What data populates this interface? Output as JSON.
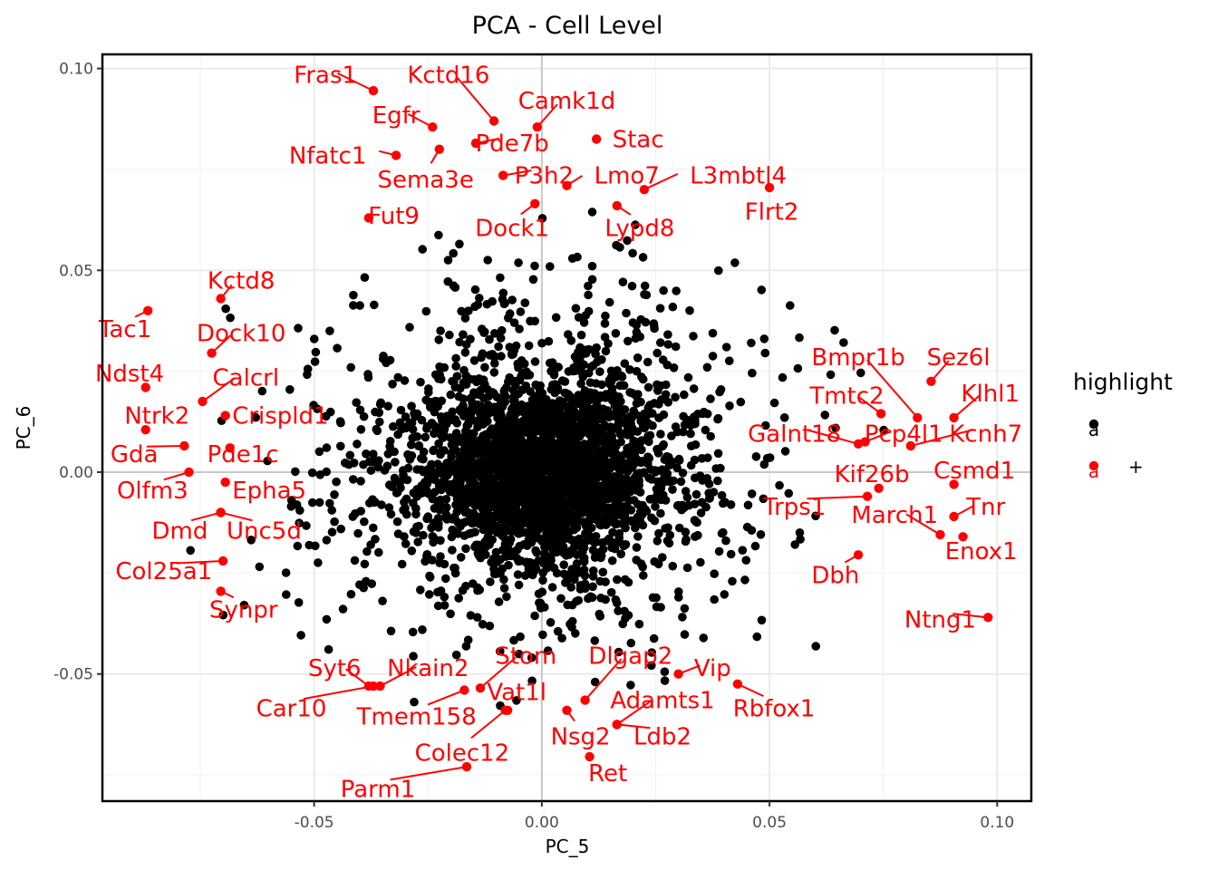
{
  "chart_data": {
    "type": "scatter",
    "title": "PCA - Cell Level",
    "xlabel": "PC_5",
    "ylabel": "PC_6",
    "xlim": [
      -0.0965,
      0.1075
    ],
    "ylim": [
      -0.0815,
      0.1035
    ],
    "x_ticks": [
      -0.05,
      0.0,
      0.05,
      0.1
    ],
    "x_tick_labels": [
      "-0.05",
      "0.00",
      "0.05",
      "0.10"
    ],
    "y_ticks": [
      -0.05,
      0.0,
      0.05,
      0.1
    ],
    "y_tick_labels": [
      "-0.05",
      "0.00",
      "0.05",
      "0.10"
    ],
    "grid": true,
    "legend": {
      "title": "highlight",
      "placement": "right",
      "entries": [
        {
          "glyph": "a",
          "label": "",
          "color": "#000000"
        },
        {
          "glyph": "a",
          "label": "+",
          "color": "#ff0000"
        }
      ]
    },
    "colors": {
      "background_points": "#000000",
      "highlight": "#ff0000"
    },
    "background_series": {
      "name": "",
      "n_points_approx": 3000,
      "center": [
        0.0,
        0.0
      ],
      "spread": [
        0.022,
        0.018
      ]
    },
    "highlighted_genes": [
      {
        "gene": "Fras1",
        "x": -0.037,
        "y": 0.0945,
        "lx": -0.0475,
        "ly": 0.0985,
        "anchor": "middle"
      },
      {
        "gene": "Kctd16",
        "x": -0.0105,
        "y": 0.087,
        "lx": -0.0205,
        "ly": 0.0985,
        "anchor": "middle"
      },
      {
        "gene": "Camk1d",
        "x": -0.001,
        "y": 0.0855,
        "lx": 0.0055,
        "ly": 0.092,
        "anchor": "middle"
      },
      {
        "gene": "Egfr",
        "x": -0.024,
        "y": 0.0855,
        "lx": -0.032,
        "ly": 0.0885,
        "anchor": "middle"
      },
      {
        "gene": "Stac",
        "x": 0.012,
        "y": 0.0825,
        "lx": 0.0155,
        "ly": 0.0825,
        "anchor": "start"
      },
      {
        "gene": "Pde7b",
        "x": -0.0145,
        "y": 0.0815,
        "lx": -0.0065,
        "ly": 0.0815,
        "anchor": "middle"
      },
      {
        "gene": "Nfatc1",
        "x": -0.032,
        "y": 0.0785,
        "lx": -0.0385,
        "ly": 0.0785,
        "anchor": "end"
      },
      {
        "gene": "Sema3e",
        "x": -0.0225,
        "y": 0.08,
        "lx": -0.0255,
        "ly": 0.0725,
        "anchor": "middle"
      },
      {
        "gene": "P3h2",
        "x": -0.0085,
        "y": 0.0735,
        "lx": 0.0005,
        "ly": 0.0735,
        "anchor": "middle"
      },
      {
        "gene": "Lmo7",
        "x": 0.0055,
        "y": 0.071,
        "lx": 0.0115,
        "ly": 0.0735,
        "anchor": "start"
      },
      {
        "gene": "L3mbtl4",
        "x": 0.0225,
        "y": 0.07,
        "lx": 0.0325,
        "ly": 0.0735,
        "anchor": "start"
      },
      {
        "gene": "Flrt2",
        "x": 0.05,
        "y": 0.0705,
        "lx": 0.0505,
        "ly": 0.0645,
        "anchor": "middle"
      },
      {
        "gene": "Fut9",
        "x": -0.038,
        "y": 0.063,
        "lx": -0.0325,
        "ly": 0.0635,
        "anchor": "middle"
      },
      {
        "gene": "Dock1",
        "x": -0.0015,
        "y": 0.0665,
        "lx": -0.0065,
        "ly": 0.0605,
        "anchor": "middle"
      },
      {
        "gene": "Lypd8",
        "x": 0.0165,
        "y": 0.066,
        "lx": 0.0215,
        "ly": 0.0605,
        "anchor": "middle"
      },
      {
        "gene": "Kctd8",
        "x": -0.0705,
        "y": 0.043,
        "lx": -0.066,
        "ly": 0.0475,
        "anchor": "middle"
      },
      {
        "gene": "Tac1",
        "x": -0.0865,
        "y": 0.04,
        "lx": -0.0915,
        "ly": 0.0355,
        "anchor": "middle"
      },
      {
        "gene": "Dock10",
        "x": -0.0725,
        "y": 0.0295,
        "lx": -0.066,
        "ly": 0.0345,
        "anchor": "middle"
      },
      {
        "gene": "Ndst4",
        "x": -0.087,
        "y": 0.021,
        "lx": -0.0905,
        "ly": 0.0245,
        "anchor": "middle"
      },
      {
        "gene": "Calcrl",
        "x": -0.0745,
        "y": 0.0175,
        "lx": -0.065,
        "ly": 0.0235,
        "anchor": "middle"
      },
      {
        "gene": "Ntrk2",
        "x": -0.087,
        "y": 0.0105,
        "lx": -0.0845,
        "ly": 0.014,
        "anchor": "middle"
      },
      {
        "gene": "Crispld1",
        "x": -0.0695,
        "y": 0.014,
        "lx": -0.068,
        "ly": 0.014,
        "anchor": "start"
      },
      {
        "gene": "Gda",
        "x": -0.0785,
        "y": 0.0065,
        "lx": -0.0895,
        "ly": 0.0045,
        "anchor": "middle"
      },
      {
        "gene": "Pde1c",
        "x": -0.0685,
        "y": 0.006,
        "lx": -0.0735,
        "ly": 0.0045,
        "anchor": "start"
      },
      {
        "gene": "Olfm3",
        "x": -0.0775,
        "y": 0.0,
        "lx": -0.0855,
        "ly": -0.0045,
        "anchor": "middle"
      },
      {
        "gene": "Epha5",
        "x": -0.0695,
        "y": -0.0025,
        "lx": -0.068,
        "ly": -0.0045,
        "anchor": "start"
      },
      {
        "gene": "Dmd",
        "x": -0.0705,
        "y": -0.01,
        "lx": -0.0795,
        "ly": -0.0145,
        "anchor": "middle"
      },
      {
        "gene": "Unc5d",
        "x": -0.0705,
        "y": -0.01,
        "lx": -0.061,
        "ly": -0.0145,
        "anchor": "middle"
      },
      {
        "gene": "Col25a1",
        "x": -0.07,
        "y": -0.022,
        "lx": -0.083,
        "ly": -0.0245,
        "anchor": "middle"
      },
      {
        "gene": "Synpr",
        "x": -0.0705,
        "y": -0.0295,
        "lx": -0.0655,
        "ly": -0.034,
        "anchor": "middle"
      },
      {
        "gene": "Bmpr1b",
        "x": 0.0825,
        "y": 0.0135,
        "lx": 0.0695,
        "ly": 0.0285,
        "anchor": "middle"
      },
      {
        "gene": "Sez6l",
        "x": 0.0855,
        "y": 0.0225,
        "lx": 0.0915,
        "ly": 0.0285,
        "anchor": "middle"
      },
      {
        "gene": "Klhl1",
        "x": 0.0905,
        "y": 0.0135,
        "lx": 0.0985,
        "ly": 0.0195,
        "anchor": "middle"
      },
      {
        "gene": "Tmtc2",
        "x": 0.0745,
        "y": 0.0145,
        "lx": 0.067,
        "ly": 0.019,
        "anchor": "middle"
      },
      {
        "gene": "Galnt18",
        "x": 0.0695,
        "y": 0.007,
        "lx": 0.0555,
        "ly": 0.0095,
        "anchor": "middle"
      },
      {
        "gene": "Pcp4l1",
        "x": 0.071,
        "y": 0.0075,
        "lx": 0.0795,
        "ly": 0.0095,
        "anchor": "middle"
      },
      {
        "gene": "Kcnh7",
        "x": 0.081,
        "y": 0.0065,
        "lx": 0.0975,
        "ly": 0.0095,
        "anchor": "middle"
      },
      {
        "gene": "Kif26b",
        "x": 0.074,
        "y": -0.004,
        "lx": 0.0725,
        "ly": -0.0005,
        "anchor": "middle"
      },
      {
        "gene": "Csmd1",
        "x": 0.0905,
        "y": -0.003,
        "lx": 0.095,
        "ly": 0.0005,
        "anchor": "middle"
      },
      {
        "gene": "Trps1",
        "x": 0.0715,
        "y": -0.006,
        "lx": 0.0555,
        "ly": -0.0085,
        "anchor": "middle"
      },
      {
        "gene": "Tnr",
        "x": 0.0905,
        "y": -0.011,
        "lx": 0.0975,
        "ly": -0.0085,
        "anchor": "middle"
      },
      {
        "gene": "March1",
        "x": 0.0875,
        "y": -0.0155,
        "lx": 0.0775,
        "ly": -0.0105,
        "anchor": "middle"
      },
      {
        "gene": "Enox1",
        "x": 0.0925,
        "y": -0.016,
        "lx": 0.0965,
        "ly": -0.0195,
        "anchor": "middle"
      },
      {
        "gene": "Dbh",
        "x": 0.0695,
        "y": -0.0205,
        "lx": 0.0645,
        "ly": -0.0255,
        "anchor": "middle"
      },
      {
        "gene": "Ntng1",
        "x": 0.098,
        "y": -0.036,
        "lx": 0.0875,
        "ly": -0.0365,
        "anchor": "middle"
      },
      {
        "gene": "Syt6",
        "x": -0.038,
        "y": -0.053,
        "lx": -0.0455,
        "ly": -0.0485,
        "anchor": "middle"
      },
      {
        "gene": "Nkain2",
        "x": -0.0355,
        "y": -0.053,
        "lx": -0.025,
        "ly": -0.0485,
        "anchor": "middle"
      },
      {
        "gene": "Stom",
        "x": -0.0135,
        "y": -0.0535,
        "lx": -0.0035,
        "ly": -0.0455,
        "anchor": "middle"
      },
      {
        "gene": "Dlgap2",
        "x": 0.0095,
        "y": -0.0565,
        "lx": 0.0195,
        "ly": -0.0455,
        "anchor": "middle"
      },
      {
        "gene": "Vip",
        "x": 0.03,
        "y": -0.05,
        "lx": 0.0375,
        "ly": -0.0485,
        "anchor": "middle"
      },
      {
        "gene": "Car10",
        "x": -0.037,
        "y": -0.053,
        "lx": -0.055,
        "ly": -0.0585,
        "anchor": "middle"
      },
      {
        "gene": "Tmem158",
        "x": -0.017,
        "y": -0.054,
        "lx": -0.0275,
        "ly": -0.0605,
        "anchor": "middle"
      },
      {
        "gene": "Vat1l",
        "x": -0.0075,
        "y": -0.059,
        "lx": -0.0055,
        "ly": -0.0545,
        "anchor": "middle"
      },
      {
        "gene": "Adamts1",
        "x": 0.0165,
        "y": -0.0625,
        "lx": 0.0265,
        "ly": -0.0565,
        "anchor": "middle"
      },
      {
        "gene": "Rbfox1",
        "x": 0.043,
        "y": -0.0525,
        "lx": 0.051,
        "ly": -0.0585,
        "anchor": "middle"
      },
      {
        "gene": "Nsg2",
        "x": 0.0055,
        "y": -0.059,
        "lx": 0.0085,
        "ly": -0.0655,
        "anchor": "middle"
      },
      {
        "gene": "Ldb2",
        "x": 0.0165,
        "y": -0.0625,
        "lx": 0.0265,
        "ly": -0.0655,
        "anchor": "middle"
      },
      {
        "gene": "Colec12",
        "x": -0.008,
        "y": -0.059,
        "lx": -0.0175,
        "ly": -0.0695,
        "anchor": "middle"
      },
      {
        "gene": "Ret",
        "x": 0.0105,
        "y": -0.0705,
        "lx": 0.0145,
        "ly": -0.0745,
        "anchor": "middle"
      },
      {
        "gene": "Parm1",
        "x": -0.0165,
        "y": -0.073,
        "lx": -0.036,
        "ly": -0.0785,
        "anchor": "middle"
      }
    ]
  }
}
